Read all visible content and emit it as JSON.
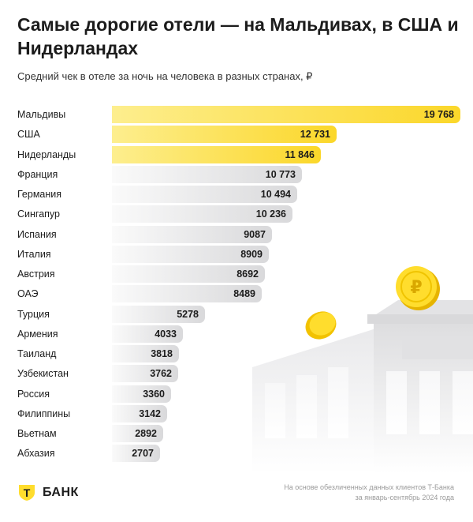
{
  "header": {
    "title": "Самые дорогие отели — на Мальдивах, в США и Нидерландах",
    "subtitle": "Средний чек в отеле за ночь на человека в разных странах, ₽"
  },
  "colors": {
    "highlight_start": "#fdee8e",
    "highlight_end": "#fbd72a",
    "bar_start": "#fafafa",
    "bar_end": "#d9d9db"
  },
  "chart_data": {
    "type": "bar",
    "orientation": "horizontal",
    "categories": [
      "Мальдивы",
      "США",
      "Нидерланды",
      "Франция",
      "Германия",
      "Сингапур",
      "Испания",
      "Италия",
      "Австрия",
      "ОАЭ",
      "Турция",
      "Армения",
      "Таиланд",
      "Узбекистан",
      "Россия",
      "Филиппины",
      "Вьетнам",
      "Абхазия"
    ],
    "values": [
      19768,
      12731,
      11846,
      10773,
      10494,
      10236,
      9087,
      8909,
      8692,
      8489,
      5278,
      4033,
      3818,
      3762,
      3360,
      3142,
      2892,
      2707
    ],
    "labels": [
      "19 768",
      "12 731",
      "11 846",
      "10 773",
      "10 494",
      "10 236",
      "9087",
      "8909",
      "8692",
      "8489",
      "5278",
      "4033",
      "3818",
      "3762",
      "3360",
      "3142",
      "2892",
      "2707"
    ],
    "highlighted": [
      "Мальдивы",
      "США",
      "Нидерланды"
    ],
    "xlim": [
      0,
      19768
    ],
    "grid": false,
    "legend": "none"
  },
  "footer": {
    "brand": "БАНК",
    "logo_letter": "Т",
    "note_line1": "На основе обезличенных данных клиентов Т-Банка",
    "note_line2": "за январь-сентябрь 2024 года"
  },
  "icons": [
    "coin-ruble-icon",
    "coin-icon",
    "building-illustration",
    "t-bank-shield-icon"
  ]
}
